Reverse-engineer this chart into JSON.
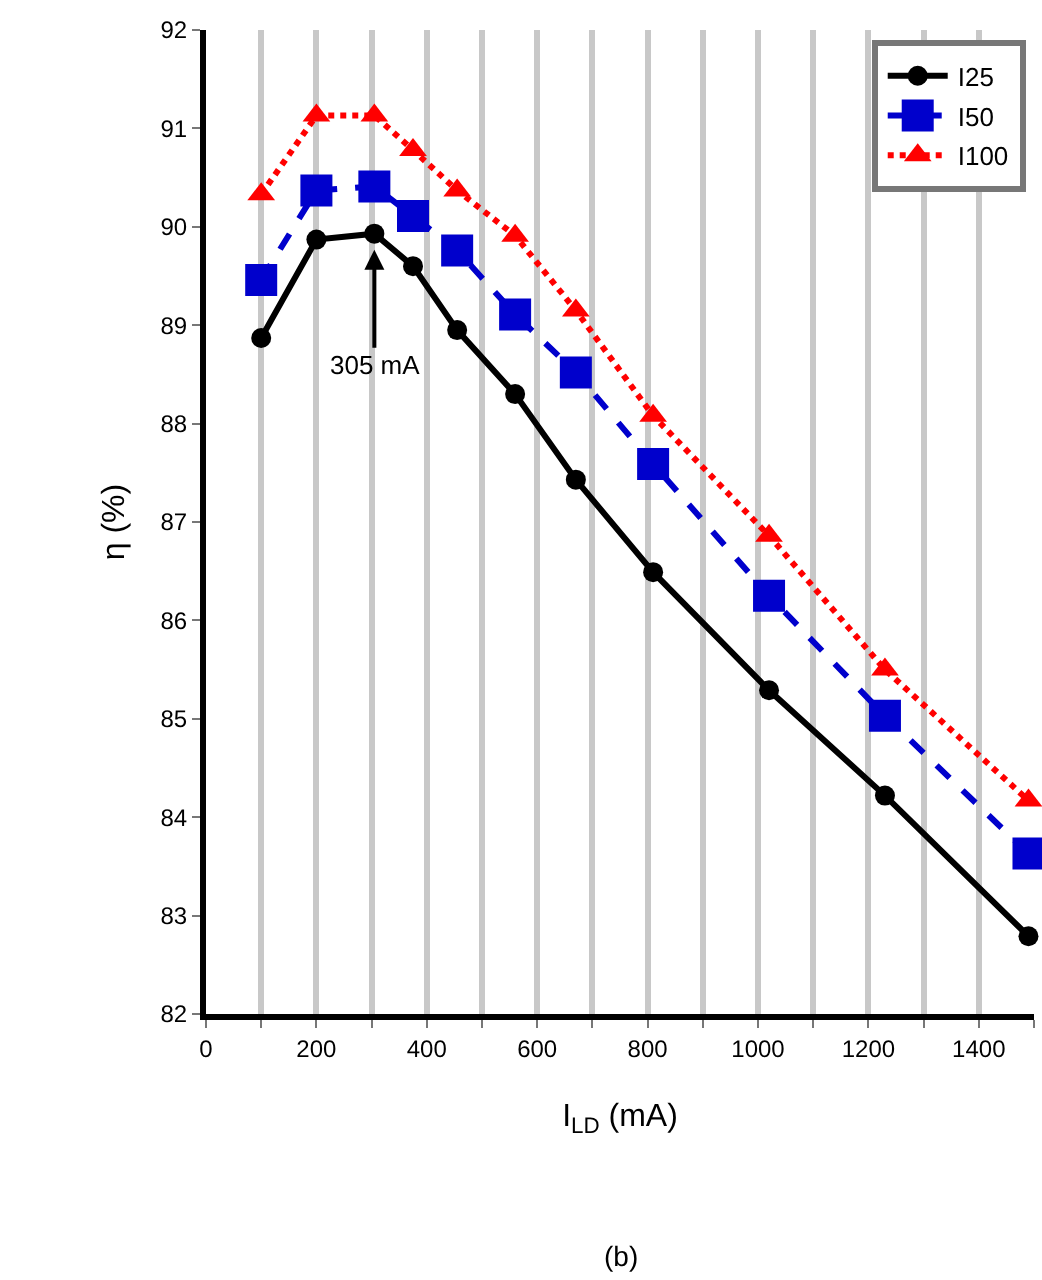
{
  "chart_data": {
    "type": "line",
    "xlabel": "I$_{LD}$ (mA)",
    "ylabel": "η (%)",
    "x": [
      100,
      200,
      305,
      375,
      455,
      560,
      670,
      810,
      1020,
      1230,
      1490
    ],
    "series": [
      {
        "name": "I25",
        "color": "#000000",
        "marker": "circle",
        "line_style": "solid",
        "values": [
          88.87,
          89.87,
          89.93,
          89.6,
          88.95,
          88.3,
          87.43,
          86.49,
          85.29,
          84.22,
          82.79
        ]
      },
      {
        "name": "I50",
        "color": "#0000cc",
        "marker": "square",
        "line_style": "dashed",
        "values": [
          89.46,
          90.37,
          90.41,
          90.11,
          89.76,
          89.11,
          88.52,
          87.59,
          86.25,
          85.03,
          83.63
        ]
      },
      {
        "name": "I100",
        "color": "#ff0000",
        "marker": "triangle",
        "line_style": "dotted",
        "values": [
          90.33,
          91.13,
          91.13,
          90.78,
          90.37,
          89.91,
          89.15,
          88.08,
          86.86,
          85.5,
          84.17
        ]
      }
    ],
    "xlim": [
      0,
      1500
    ],
    "xticks": [
      0,
      {
        "value": 100,
        "label": null
      },
      200,
      {
        "value": 300,
        "label": null
      },
      400,
      {
        "value": 500,
        "label": null
      },
      600,
      {
        "value": 700,
        "label": null
      },
      800,
      {
        "value": 900,
        "label": null
      },
      1000,
      {
        "value": 1100,
        "label": null
      },
      1200,
      {
        "value": 1300,
        "label": null
      },
      1400,
      {
        "value": 1500,
        "label": null
      }
    ],
    "ylim": [
      82,
      92
    ],
    "yticks": [
      82,
      83,
      84,
      85,
      86,
      87,
      88,
      89,
      90,
      91,
      92
    ],
    "grid": "x",
    "legend": "top right",
    "annotations": [
      {
        "text": "305 mA",
        "x": 305,
        "y": 89.93
      },
      "(b)"
    ]
  }
}
